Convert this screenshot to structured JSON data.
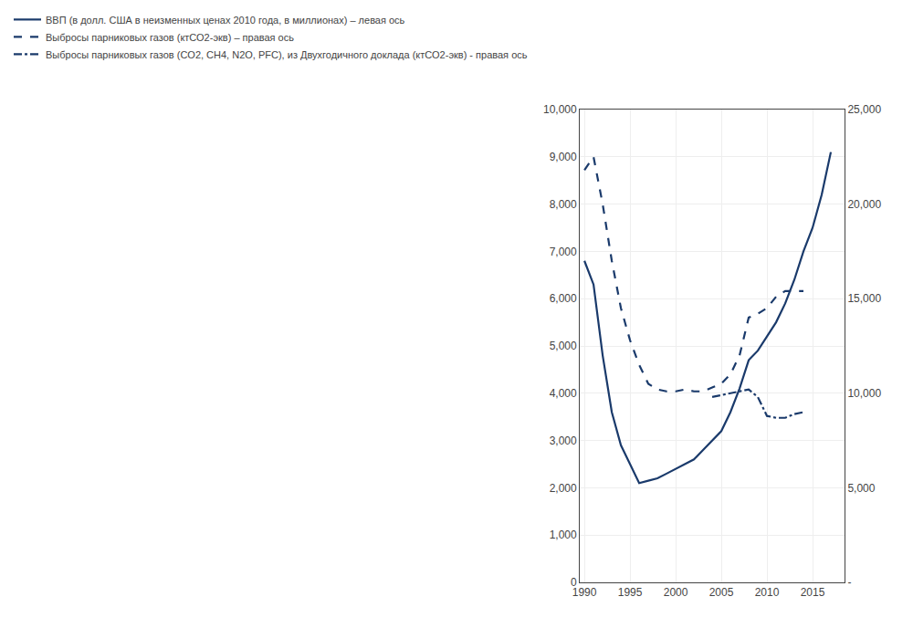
{
  "chart_data": {
    "type": "line",
    "x": [
      1990,
      1991,
      1992,
      1993,
      1994,
      1995,
      1996,
      1997,
      1998,
      1999,
      2000,
      2001,
      2002,
      2003,
      2004,
      2005,
      2006,
      2007,
      2008,
      2009,
      2010,
      2011,
      2012,
      2013,
      2014,
      2015,
      2016,
      2017
    ],
    "series": [
      {
        "name": "ВВП (в долл. США в неизменных ценах 2010 года, в миллионах) – левая ось",
        "color": "#1a3a6b",
        "line_style": "solid",
        "values": [
          6800,
          6300,
          4800,
          3600,
          2900,
          2500,
          2100,
          2150,
          2200,
          2300,
          2400,
          2500,
          2600,
          2800,
          3000,
          3200,
          3600,
          4100,
          4700,
          4900,
          5200,
          5500,
          5900,
          6400,
          7000,
          7500,
          8200,
          9100
        ]
      },
      {
        "name": "Выбросы парниковых газов (ктСО2-экв) – правая ось",
        "color": "#1a3a6b",
        "line_style": "dashed",
        "axis": "y2",
        "values": [
          21800,
          22500,
          20000,
          17000,
          14500,
          12800,
          11500,
          10500,
          10200,
          10100,
          10100,
          10200,
          10100,
          10100,
          10300,
          10500,
          11000,
          12000,
          14000,
          14200,
          14500,
          15100,
          15400,
          15400,
          15400,
          null,
          null,
          null
        ]
      },
      {
        "name": "Выбросы парниковых газов (CO2, CH4, N2O, PFC), из Двухгодичного доклада (ктСО2-экв) - правая ось",
        "color": "#1a3a6b",
        "line_style": "dashdot",
        "axis": "y2",
        "values": [
          null,
          null,
          null,
          null,
          null,
          null,
          null,
          null,
          null,
          null,
          null,
          null,
          null,
          null,
          9800,
          9900,
          10000,
          10100,
          10200,
          9800,
          8800,
          8700,
          8700,
          8900,
          9000,
          null,
          null,
          null
        ]
      }
    ],
    "xlim": [
      1989.5,
      2018.5
    ],
    "xticks": [
      1990,
      1995,
      2000,
      2005,
      2010,
      2015
    ],
    "ylim": [
      0,
      10000
    ],
    "yticks": [
      0,
      {
        "value": 1000,
        "label": "1,000"
      },
      {
        "value": 2000,
        "label": "2,000"
      },
      {
        "value": 3000,
        "label": "3,000"
      },
      {
        "value": 4000,
        "label": "4,000"
      },
      {
        "value": 5000,
        "label": "5,000"
      },
      {
        "value": 6000,
        "label": "6,000"
      },
      {
        "value": 7000,
        "label": "7,000"
      },
      {
        "value": 8000,
        "label": "8,000"
      },
      {
        "value": 9000,
        "label": "9,000"
      },
      {
        "value": 10000,
        "label": "10,000"
      }
    ],
    "y2lim": [
      0,
      25000
    ],
    "y2ticks": [
      {
        "value": 0,
        "label": "-"
      },
      {
        "value": 5000,
        "label": "5,000"
      },
      {
        "value": 10000,
        "label": "10,000"
      },
      {
        "value": 15000,
        "label": "15,000"
      },
      {
        "value": 20000,
        "label": "20,000"
      },
      {
        "value": 25000,
        "label": "25,000"
      }
    ],
    "grid": true,
    "legend": "upper left"
  }
}
